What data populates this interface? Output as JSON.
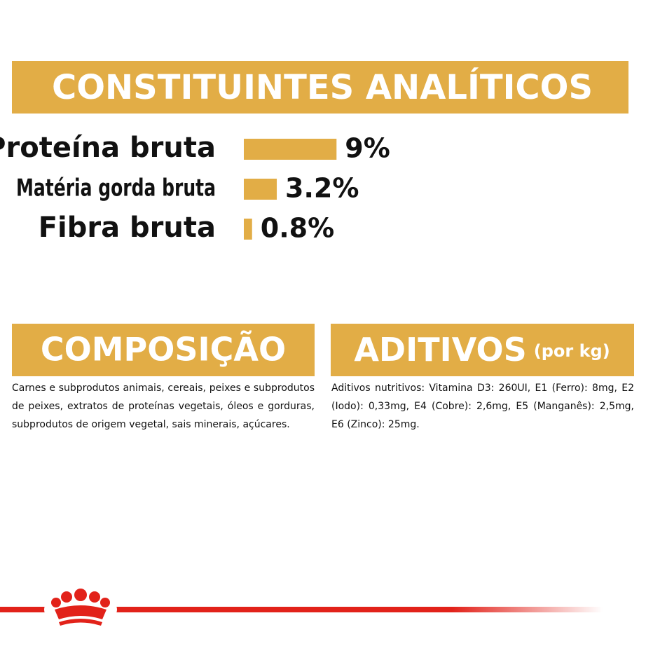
{
  "analysis": {
    "title": "CONSTITUINTES ANALÍTICOS",
    "items": [
      {
        "label": "Proteína bruta",
        "value": 9,
        "value_label": "9%"
      },
      {
        "label": "Matéria gorda bruta",
        "value": 3.2,
        "value_label": "3.2%"
      },
      {
        "label": "Fibra bruta",
        "value": 0.8,
        "value_label": "0.8%"
      }
    ]
  },
  "composition": {
    "title": "COMPOSIÇÃO",
    "text": "Carnes e subprodutos animais, cereais, peixes e subprodutos de peixes, extratos de proteínas vegetais, óleos e gorduras, subprodutos de origem vegetal, sais minerais, açúcares."
  },
  "additives": {
    "title": "ADITIVOS",
    "subtitle": "(por kg)",
    "text": "Aditivos nutritivos: Vitamina D3: 260UI, E1 (Ferro): 8mg, E2 (Iodo): 0,33mg, E4 (Cobre): 2,6mg, E5 (Manganês): 2,5mg, E6 (Zinco): 25mg."
  }
}
